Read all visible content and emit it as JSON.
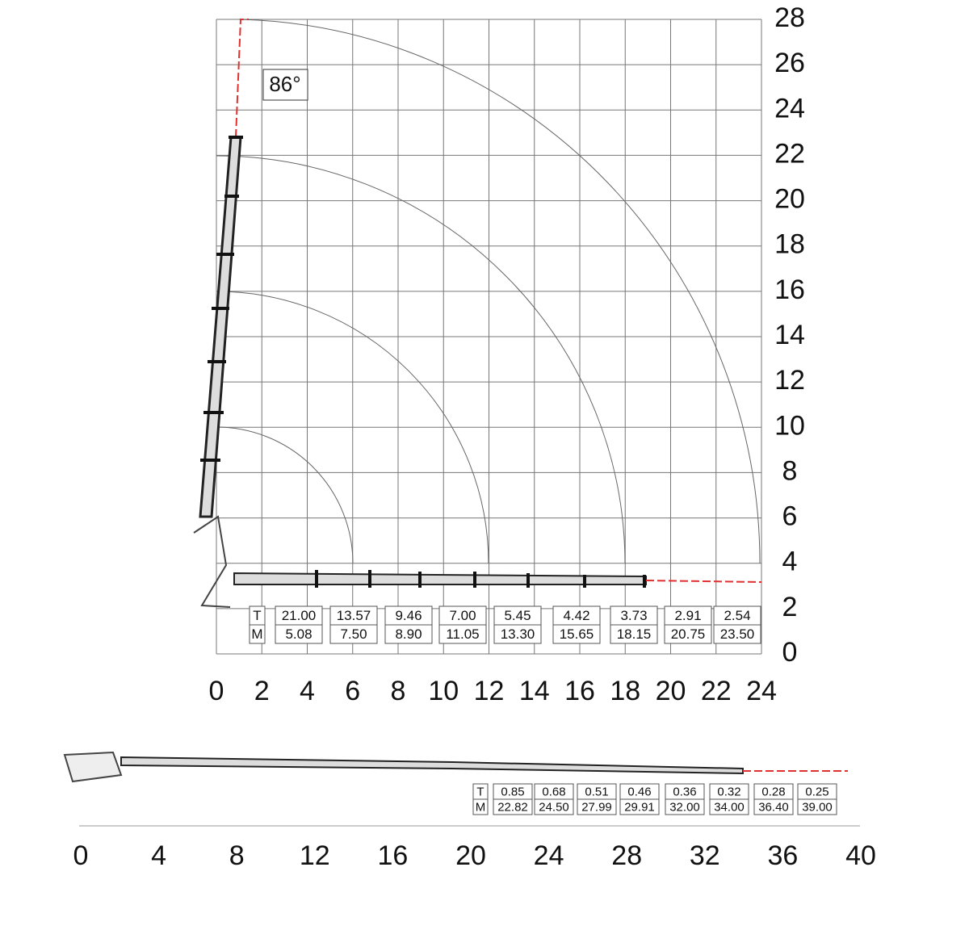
{
  "top_chart": {
    "angle_label": "86°",
    "xlim": [
      0,
      24
    ],
    "ylim": [
      0,
      28
    ],
    "xticks": [
      0,
      2,
      4,
      6,
      8,
      10,
      12,
      14,
      16,
      18,
      20,
      22,
      24
    ],
    "yticks": [
      0,
      2,
      4,
      6,
      8,
      10,
      12,
      14,
      16,
      18,
      20,
      22,
      24,
      26,
      28
    ],
    "load_table": {
      "row_labels": [
        "T",
        "M"
      ],
      "t_values": [
        "21.00",
        "13.57",
        "9.46",
        "7.00",
        "5.45",
        "4.42",
        "3.73",
        "2.91",
        "2.54"
      ],
      "m_values": [
        "5.08",
        "7.50",
        "8.90",
        "11.05",
        "13.30",
        "15.65",
        "18.15",
        "20.75",
        "23.50"
      ]
    }
  },
  "bottom_chart": {
    "xlim": [
      0,
      40
    ],
    "xticks": [
      0,
      4,
      8,
      12,
      16,
      20,
      24,
      28,
      32,
      36,
      40
    ],
    "load_table": {
      "row_labels": [
        "T",
        "M"
      ],
      "t_values": [
        "0.85",
        "0.68",
        "0.51",
        "0.46",
        "0.36",
        "0.32",
        "0.28",
        "0.25"
      ],
      "m_values": [
        "22.82",
        "24.50",
        "27.99",
        "29.91",
        "32.00",
        "34.00",
        "36.40",
        "39.00"
      ]
    }
  }
}
